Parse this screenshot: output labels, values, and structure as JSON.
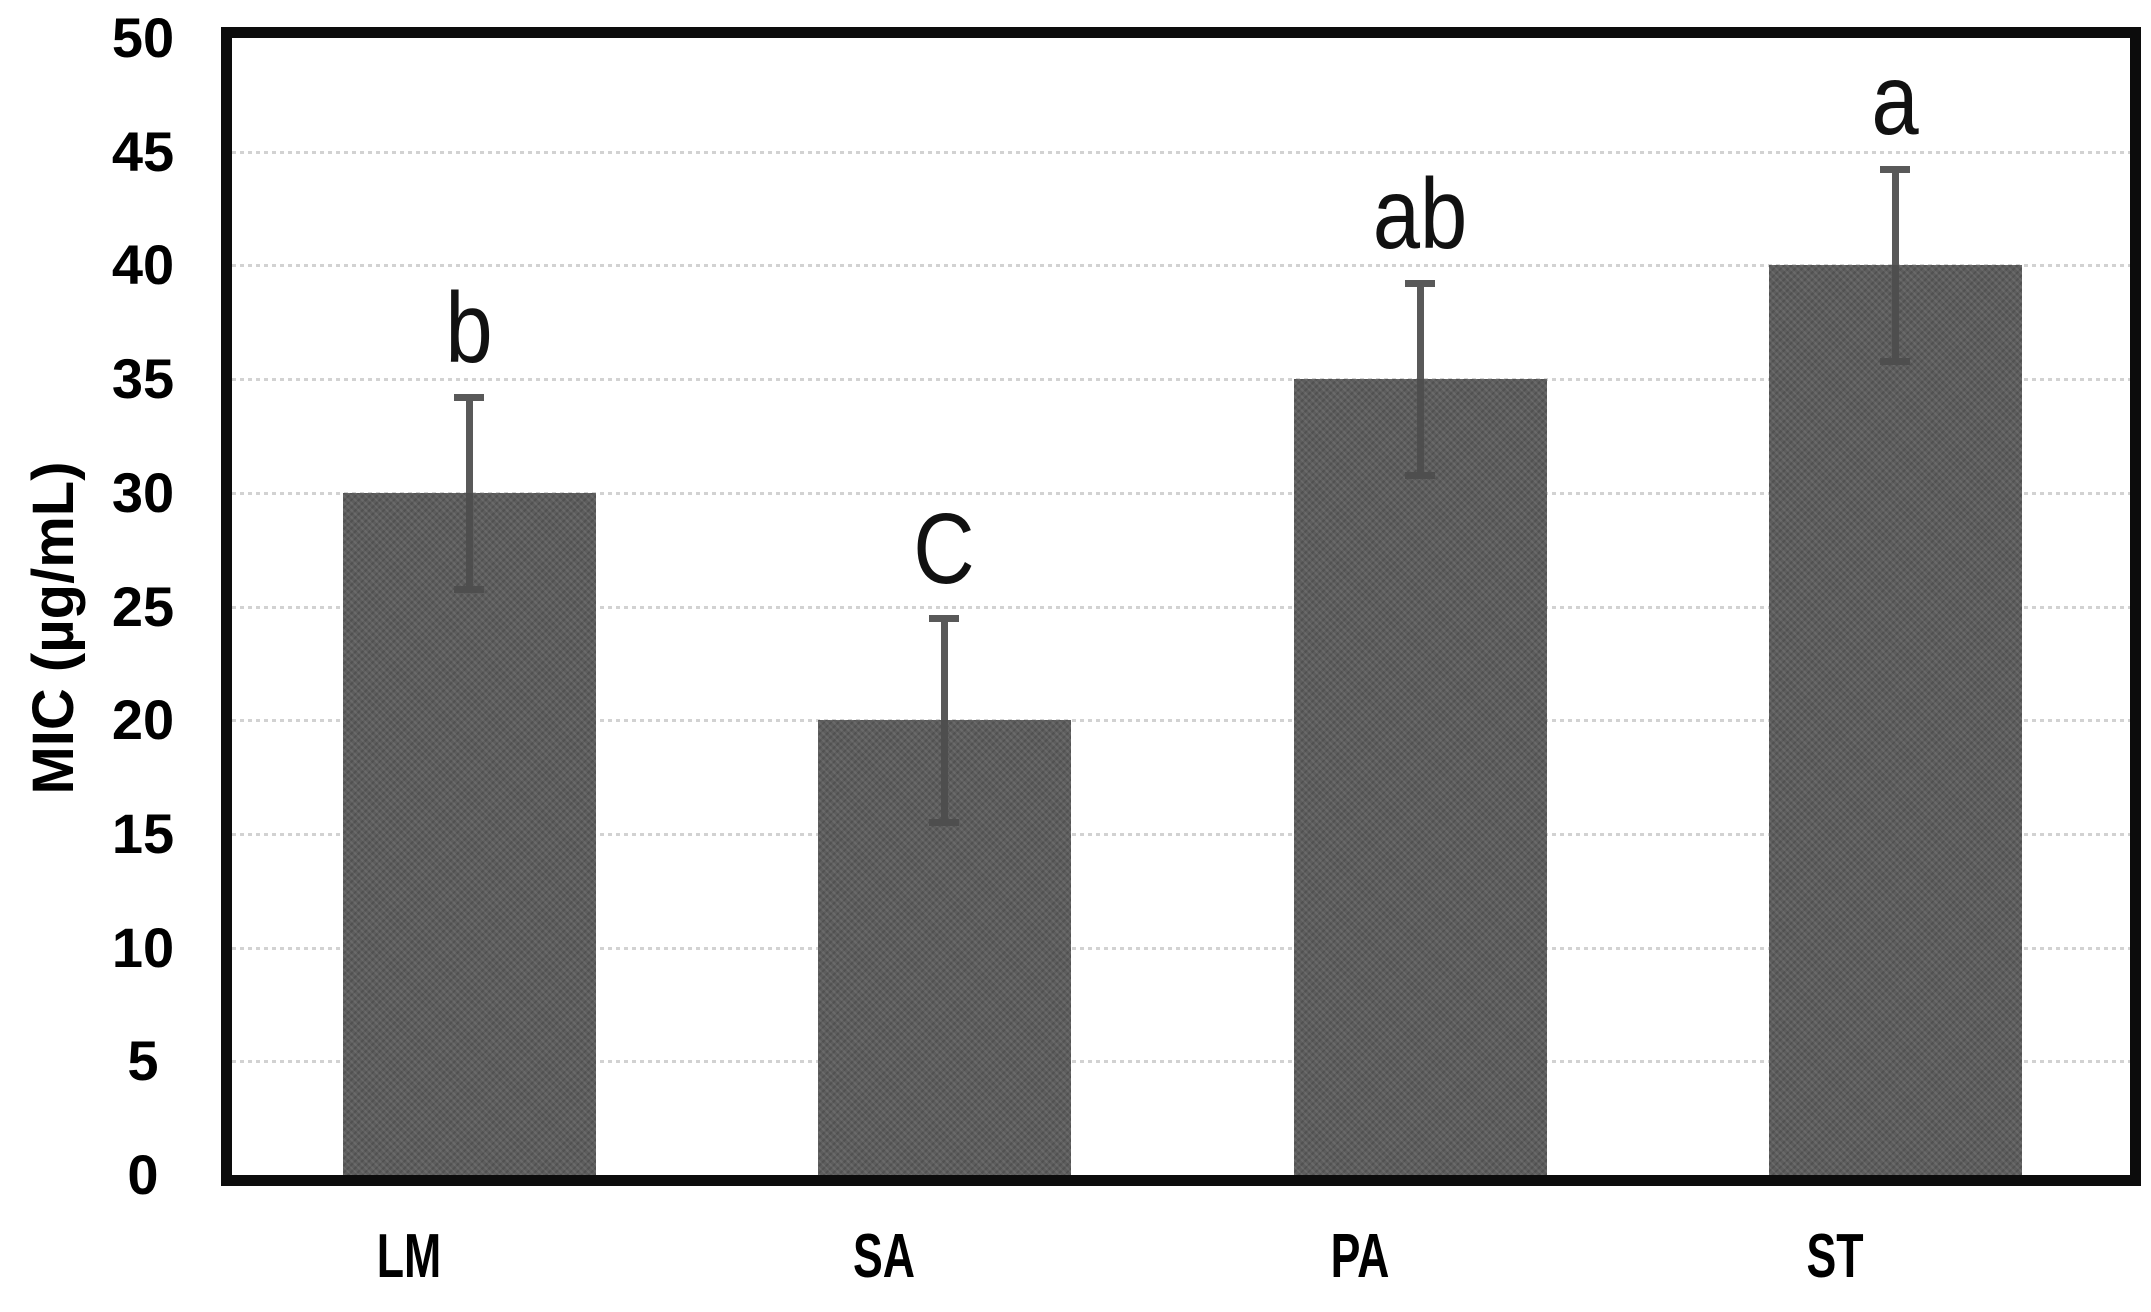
{
  "chart_data": {
    "type": "bar",
    "title": "",
    "categories": [
      "LM",
      "SA",
      "PA",
      "ST"
    ],
    "values": [
      30,
      20,
      35,
      40
    ],
    "errors": [
      4.2,
      4.5,
      4.2,
      4.2
    ],
    "significance_letters": [
      "b",
      "C",
      "ab",
      "a"
    ],
    "xlabel": "",
    "ylabel": "MIC (µg/mL)",
    "ylim": [
      0,
      50
    ],
    "ytick_step": 5,
    "yticks": [
      0,
      5,
      10,
      15,
      20,
      25,
      30,
      35,
      40,
      45,
      50
    ],
    "grid": "horizontal-dotted",
    "legend_position": "none",
    "bar_color": "#5d5d5d",
    "error_bar_color": "#595959",
    "gridline_color": "#d2d2d2",
    "border_color": "#0c0c0c",
    "background_color": "#ffffff"
  }
}
